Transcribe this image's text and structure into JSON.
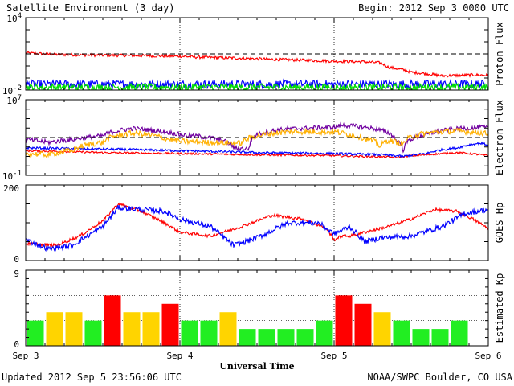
{
  "header": {
    "title": "Satellite Environment (3 day)",
    "begin": "Begin:  2012 Sep 3 0000 UTC"
  },
  "footer": {
    "updated": "Updated 2012 Sep  5 23:56:06 UTC",
    "source": "NOAA/SWPC Boulder, CO USA"
  },
  "x_axis": {
    "title": "Universal Time",
    "tick_labels": [
      "Sep 3",
      "Sep 4",
      "Sep 5",
      "Sep 6"
    ],
    "range_days": [
      0,
      3
    ]
  },
  "colors": {
    "red": "#ff0000",
    "blue": "#0000ff",
    "green": "#00e000",
    "purple": "#7000a0",
    "orange": "#ffb000",
    "kp_green": "#22ee22",
    "kp_yellow": "#ffd400",
    "kp_red": "#ff0000",
    "threshold": "#000000"
  },
  "chart_data": [
    {
      "type": "line",
      "ylabel": "Proton Flux",
      "yscale": "log",
      "ylim": [
        0.01,
        10000
      ],
      "ytick_labels": [
        {
          "value": 10000,
          "base": "10",
          "exp": "4"
        },
        {
          "value": 0.01,
          "base": "10",
          "exp": "-2"
        }
      ],
      "threshold": 10,
      "series": [
        {
          "color": "#ff0000",
          "x": [
            0,
            0.05,
            0.2,
            0.4,
            0.6,
            0.8,
            0.95,
            1.0,
            1.1,
            1.2,
            1.4,
            1.6,
            1.8,
            2.0,
            2.2,
            2.3,
            2.35,
            2.5,
            2.7,
            2.9,
            3.0
          ],
          "y": [
            12,
            11,
            9,
            8,
            7.5,
            7,
            6.5,
            6.5,
            5.5,
            5,
            4.4,
            3.5,
            3,
            2.5,
            2.2,
            1.8,
            0.8,
            0.3,
            0.15,
            0.18,
            0.17
          ],
          "noise": 0.12
        },
        {
          "color": "#0000ff",
          "x": [
            0,
            3
          ],
          "y": [
            0.03,
            0.03
          ],
          "noise": 0.35
        },
        {
          "color": "#00e000",
          "x": [
            0,
            3
          ],
          "y": [
            0.017,
            0.017
          ],
          "noise": 0.3
        }
      ]
    },
    {
      "type": "line",
      "ylabel": "Electron Flux",
      "yscale": "log",
      "ylim": [
        0.1,
        10000000
      ],
      "ytick_labels": [
        {
          "value": 10000000,
          "base": "10",
          "exp": "7"
        },
        {
          "value": 0.1,
          "base": "10",
          "exp": "-1"
        }
      ],
      "threshold": 1000,
      "series": [
        {
          "color": "#ff0000",
          "x": [
            0,
            0.5,
            1.0,
            1.5,
            2.0,
            2.2,
            2.4,
            2.6,
            2.8,
            3.0
          ],
          "y": [
            40,
            25,
            20,
            15,
            12,
            10,
            8,
            15,
            25,
            12
          ],
          "noise": 0.1
        },
        {
          "color": "#0000ff",
          "x": [
            0,
            0.5,
            1.0,
            1.5,
            2.0,
            2.3,
            2.45,
            2.6,
            2.8,
            2.95,
            3.0
          ],
          "y": [
            80,
            60,
            40,
            25,
            20,
            15,
            10,
            20,
            80,
            250,
            150
          ],
          "noise": 0.12
        },
        {
          "color": "#7000a0",
          "x": [
            0,
            0.15,
            0.3,
            0.5,
            0.7,
            0.8,
            1.0,
            1.2,
            1.35,
            1.45,
            1.5,
            1.7,
            2.0,
            2.05,
            2.2,
            2.3,
            2.4,
            2.45,
            2.6,
            2.8,
            2.95,
            3.0
          ],
          "y": [
            600,
            300,
            600,
            1500,
            9000,
            6000,
            2000,
            900,
            80,
            60,
            2000,
            8000,
            12000,
            20000,
            12000,
            6000,
            500,
            30,
            2000,
            8000,
            12000,
            10000
          ],
          "noise": 0.25
        },
        {
          "color": "#ffb000",
          "x": [
            0,
            0.15,
            0.3,
            0.5,
            0.7,
            0.9,
            1.0,
            1.2,
            1.4,
            1.5,
            1.7,
            2.0,
            2.1,
            2.2,
            2.3,
            2.35,
            2.45,
            2.6,
            2.8,
            2.95,
            3.0
          ],
          "y": [
            20,
            15,
            40,
            300,
            3000,
            800,
            400,
            300,
            250,
            1500,
            4000,
            4000,
            2000,
            800,
            100,
            500,
            200,
            3000,
            5000,
            3000,
            2500
          ],
          "noise": 0.3
        }
      ]
    },
    {
      "type": "line",
      "ylabel": "GOES Hp",
      "yscale": "linear",
      "ylim": [
        0,
        200
      ],
      "ytick_labels": [
        {
          "value": 200,
          "label": "200"
        },
        {
          "value": 0,
          "label": "0"
        }
      ],
      "series": [
        {
          "color": "#ff0000",
          "x": [
            0,
            0.2,
            0.35,
            0.5,
            0.6,
            0.75,
            0.9,
            1.0,
            1.2,
            1.4,
            1.6,
            1.8,
            1.95,
            2.0,
            2.05,
            2.1,
            2.2,
            2.35,
            2.5,
            2.65,
            2.8,
            2.9,
            3.0
          ],
          "y": [
            45,
            40,
            65,
            105,
            150,
            130,
            100,
            75,
            65,
            90,
            120,
            110,
            85,
            55,
            65,
            65,
            75,
            90,
            110,
            135,
            130,
            110,
            85
          ],
          "noise": 4
        },
        {
          "color": "#0000ff",
          "x": [
            0,
            0.15,
            0.3,
            0.5,
            0.6,
            0.75,
            0.9,
            1.0,
            1.2,
            1.35,
            1.5,
            1.7,
            1.9,
            2.0,
            2.1,
            2.2,
            2.3,
            2.5,
            2.7,
            2.85,
            3.0
          ],
          "y": [
            55,
            30,
            40,
            90,
            140,
            135,
            130,
            110,
            90,
            40,
            60,
            100,
            100,
            70,
            90,
            50,
            60,
            65,
            90,
            125,
            135
          ],
          "noise": 7
        }
      ]
    },
    {
      "type": "bar",
      "ylabel": "Estimated Kp",
      "ylim": [
        0,
        9
      ],
      "ytick_labels": [
        {
          "value": 9,
          "label": "9"
        },
        {
          "value": 0,
          "label": "0"
        }
      ],
      "dotted_levels": [
        3,
        6
      ],
      "bar_width_days": 0.125,
      "bars": [
        {
          "value": 3,
          "color": "#22ee22"
        },
        {
          "value": 4,
          "color": "#ffd400"
        },
        {
          "value": 4,
          "color": "#ffd400"
        },
        {
          "value": 3,
          "color": "#22ee22"
        },
        {
          "value": 6,
          "color": "#ff0000"
        },
        {
          "value": 4,
          "color": "#ffd400"
        },
        {
          "value": 4,
          "color": "#ffd400"
        },
        {
          "value": 5,
          "color": "#ff0000"
        },
        {
          "value": 3,
          "color": "#22ee22"
        },
        {
          "value": 3,
          "color": "#22ee22"
        },
        {
          "value": 4,
          "color": "#ffd400"
        },
        {
          "value": 2,
          "color": "#22ee22"
        },
        {
          "value": 2,
          "color": "#22ee22"
        },
        {
          "value": 2,
          "color": "#22ee22"
        },
        {
          "value": 2,
          "color": "#22ee22"
        },
        {
          "value": 3,
          "color": "#22ee22"
        },
        {
          "value": 6,
          "color": "#ff0000"
        },
        {
          "value": 5,
          "color": "#ff0000"
        },
        {
          "value": 4,
          "color": "#ffd400"
        },
        {
          "value": 3,
          "color": "#22ee22"
        },
        {
          "value": 2,
          "color": "#22ee22"
        },
        {
          "value": 2,
          "color": "#22ee22"
        },
        {
          "value": 3,
          "color": "#22ee22"
        }
      ]
    }
  ]
}
